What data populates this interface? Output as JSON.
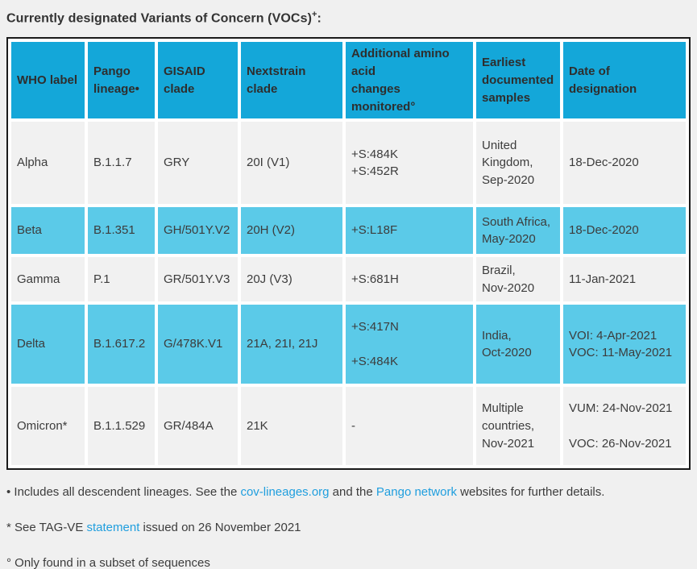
{
  "title": {
    "main": "Currently designated Variants of Concern (VOCs)",
    "sup": "+",
    "colon": ":"
  },
  "colors": {
    "page_background": "#f0f0f0",
    "header_cell": "#14a7d9",
    "row_highlight": "#5bcae8",
    "row_plain": "#f1f1f1",
    "table_border": "#1a1a1a",
    "cell_gap": "#ffffff",
    "link": "#1f9ede",
    "text": "#3c3c3c"
  },
  "table": {
    "headers": [
      "WHO label",
      "Pango lineage•",
      "GISAID clade",
      "Nextstrain clade",
      "Additional amino acid\nchanges monitored°",
      "Earliest documented samples",
      "Date of designation"
    ],
    "rows": [
      {
        "who_label": "Alpha",
        "pango_lineage": "B.1.1.7",
        "gisaid_clade": "GRY",
        "nextstrain_clade": "20I (V1)",
        "amino_acid_changes": "+S:484K\n+S:452R",
        "earliest_samples": "United Kingdom,\nSep-2020",
        "date_designation": "18-Dec-2020",
        "highlighted": false
      },
      {
        "who_label": "Beta",
        "pango_lineage": "B.1.351",
        "gisaid_clade": "GH/501Y.V2",
        "nextstrain_clade": "20H (V2)",
        "amino_acid_changes": "+S:L18F",
        "earliest_samples": "South Africa,\nMay-2020",
        "date_designation": "18-Dec-2020",
        "highlighted": true
      },
      {
        "who_label": "Gamma",
        "pango_lineage": "P.1",
        "gisaid_clade": "GR/501Y.V3",
        "nextstrain_clade": "20J (V3)",
        "amino_acid_changes": "+S:681H",
        "earliest_samples": "Brazil,\nNov-2020",
        "date_designation": "11-Jan-2021",
        "highlighted": false
      },
      {
        "who_label": "Delta",
        "pango_lineage": "B.1.617.2",
        "gisaid_clade": "G/478K.V1",
        "nextstrain_clade": "21A, 21I, 21J",
        "amino_acid_changes": "+S:417N\n\n+S:484K",
        "earliest_samples": "India,\nOct-2020",
        "date_designation": "VOI: 4-Apr-2021\nVOC: 11-May-2021",
        "highlighted": true
      },
      {
        "who_label": "Omicron*",
        "pango_lineage": "B.1.1.529",
        "gisaid_clade": "GR/484A",
        "nextstrain_clade": "21K",
        "amino_acid_changes": "-",
        "earliest_samples": "Multiple countries,\nNov-2021",
        "date_designation": "VUM: 24-Nov-2021\n\nVOC: 26-Nov-2021",
        "highlighted": false
      }
    ]
  },
  "footnotes": {
    "lineages": {
      "pre": "• Includes all descendent lineages. See the ",
      "link1": "cov-lineages.org",
      "mid": " and the ",
      "link2": "Pango network",
      "post": " websites for further details."
    },
    "tagve": {
      "pre": "* See TAG-VE ",
      "link": "statement",
      "post": " issued on 26 November 2021"
    },
    "subset": {
      "text": "° Only found in a subset of sequences"
    }
  }
}
